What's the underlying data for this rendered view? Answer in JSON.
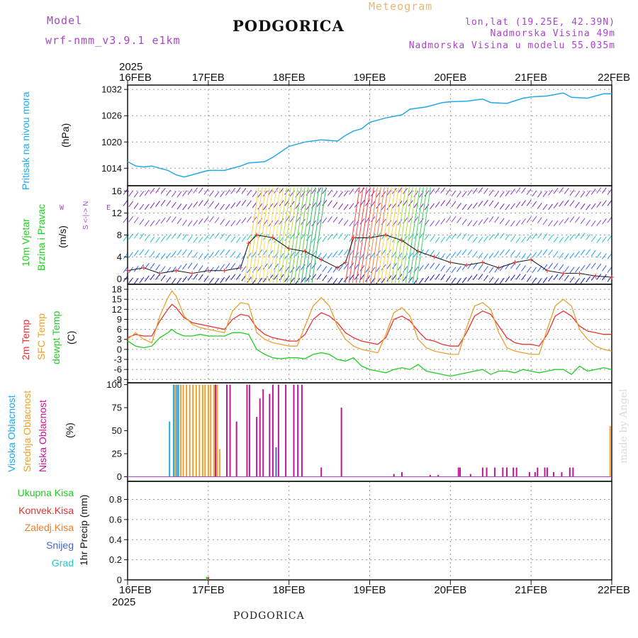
{
  "header": {
    "model_label": "Model",
    "model_name": "wrf-nmm_v3.9.1 e1km",
    "title": "PODGORICA",
    "subtitle": "Meteogram",
    "coords": "lon,lat (19.25E, 42.39N)",
    "elevation": "Nadmorska Visina 49m",
    "model_elevation": "Nadmorska Visina u modelu 55.035m"
  },
  "footer": {
    "station": "PODGORICA",
    "credit": "made by Angel"
  },
  "time_axis": {
    "year": "2025",
    "labels": [
      "16FEB",
      "17FEB",
      "18FEB",
      "19FEB",
      "20FEB",
      "21FEB",
      "22FEB"
    ]
  },
  "labels": {
    "pressure": {
      "name": "Pritisak na nivou mora",
      "unit": "(hPa)"
    },
    "wind": {
      "name1": "10m Vjetar",
      "name2": "Brzina i Pravac",
      "unit": "(m/s)",
      "compass_w": "W",
      "compass_e": "E",
      "compass_ns": "S <-|-> N"
    },
    "temp": {
      "t2m": "2m Temp",
      "sfc": "SFC Temp",
      "dew": "dewpt Temp",
      "unit": "(C)"
    },
    "cloud": {
      "high": "Visoka Oblacnost",
      "mid": "Srednja Oblacnost",
      "low": "Niska Oblacnost",
      "unit": "(%)"
    },
    "precip": {
      "total": "Ukupna Kisa",
      "conv": "Konvek.Kisa",
      "frozen": "Zaledj.Kisa",
      "snow": "Snijeg",
      "graupel": "Grad",
      "unit": "1hr Precip (mm)"
    }
  },
  "colors": {
    "pressure": "#22a8e8",
    "t2m": "#e83030",
    "sfc": "#e8a030",
    "dew": "#22cc22",
    "high": "#22a8e8",
    "mid": "#e8a030",
    "low": "#c01890",
    "snow": "#4466cc",
    "total": "#22cc22",
    "conv": "#e83030",
    "frozen": "#e88030",
    "graupel": "#22cccc",
    "model": "#aa44cc",
    "subtitle": "#e8b870",
    "credit": "#d8dcdc"
  },
  "chart_data": [
    {
      "type": "line",
      "title": "Pritisak na nivou mora",
      "ylabel": "(hPa)",
      "ylim": [
        1010,
        1033
      ],
      "yticks": [
        1014,
        1020,
        1026,
        1032
      ],
      "grid": true,
      "x": [
        0,
        0.1,
        0.2,
        0.3,
        0.4,
        0.5,
        0.6,
        0.7,
        0.8,
        0.9,
        1.0,
        1.2,
        1.4,
        1.5,
        1.7,
        1.8,
        2.0,
        2.2,
        2.4,
        2.6,
        2.7,
        2.8,
        2.9,
        3.0,
        3.2,
        3.4,
        3.5,
        3.7,
        3.9,
        4.0,
        4.2,
        4.4,
        4.5,
        4.7,
        4.9,
        5.0,
        5.2,
        5.4,
        5.5,
        5.7,
        5.9,
        6.0
      ],
      "series": [
        {
          "name": "Pritisak na nivou mora",
          "values": [
            1015.5,
            1014.5,
            1014.3,
            1014.5,
            1014.0,
            1013.5,
            1012.5,
            1012.0,
            1012.5,
            1013.0,
            1013.5,
            1013.5,
            1014.5,
            1015.2,
            1015.5,
            1016.5,
            1019.0,
            1020.0,
            1020.5,
            1020.2,
            1021.5,
            1022.5,
            1023.0,
            1024.5,
            1025.5,
            1026.2,
            1027.5,
            1028.0,
            1029.0,
            1029.2,
            1029.3,
            1029.8,
            1029.0,
            1028.8,
            1030.0,
            1030.3,
            1030.5,
            1031.2,
            1030.2,
            1030.0,
            1031.0,
            1031.0
          ]
        }
      ]
    },
    {
      "type": "line",
      "title": "10m Vjetar Brzina i Pravac",
      "ylabel": "(m/s)",
      "ylim": [
        -1,
        17
      ],
      "yticks": [
        0,
        4,
        8,
        12,
        16
      ],
      "grid": true,
      "x": [
        0,
        0.2,
        0.4,
        0.6,
        0.8,
        1.0,
        1.2,
        1.4,
        1.5,
        1.6,
        1.8,
        2.0,
        2.2,
        2.4,
        2.6,
        2.7,
        2.8,
        3.0,
        3.2,
        3.4,
        3.6,
        3.8,
        4.0,
        4.2,
        4.4,
        4.6,
        4.8,
        5.0,
        5.2,
        5.4,
        5.6,
        5.8,
        6.0
      ],
      "series": [
        {
          "name": "10m Vjetar",
          "values": [
            1.5,
            2.0,
            1.0,
            1.5,
            1.0,
            1.5,
            1.5,
            2.0,
            6.5,
            8.0,
            7.5,
            5.5,
            5.0,
            3.5,
            2.0,
            3.0,
            7.5,
            7.5,
            8.0,
            7.0,
            5.0,
            4.0,
            3.0,
            2.5,
            3.0,
            2.0,
            3.0,
            3.5,
            1.5,
            1.0,
            1.0,
            0.5,
            0.3
          ]
        }
      ]
    },
    {
      "type": "line",
      "title": "2m Temp / SFC Temp / dewpt Temp",
      "ylabel": "(C)",
      "ylim": [
        -10,
        19.5
      ],
      "yticks": [
        -9,
        -6,
        -3,
        0,
        3,
        6,
        9,
        12,
        15,
        18
      ],
      "grid": true,
      "x": [
        0,
        0.1,
        0.2,
        0.3,
        0.4,
        0.5,
        0.55,
        0.6,
        0.7,
        0.8,
        0.9,
        1.0,
        1.1,
        1.2,
        1.3,
        1.4,
        1.5,
        1.6,
        1.7,
        1.8,
        1.9,
        2.0,
        2.1,
        2.2,
        2.3,
        2.4,
        2.5,
        2.6,
        2.7,
        2.8,
        2.9,
        3.0,
        3.1,
        3.2,
        3.3,
        3.4,
        3.5,
        3.6,
        3.7,
        3.8,
        3.9,
        4.0,
        4.1,
        4.2,
        4.3,
        4.4,
        4.5,
        4.6,
        4.7,
        4.8,
        4.9,
        5.0,
        5.1,
        5.2,
        5.3,
        5.4,
        5.5,
        5.6,
        5.7,
        5.8,
        5.9,
        6.0
      ],
      "series": [
        {
          "name": "2m Temp",
          "values": [
            3.5,
            4.5,
            4.0,
            4.0,
            8.5,
            12.0,
            13.5,
            12.5,
            9.5,
            8.0,
            7.5,
            7.0,
            6.5,
            6.0,
            9.0,
            10.5,
            10.0,
            6.5,
            4.5,
            3.5,
            3.0,
            2.5,
            2.5,
            4.5,
            9.0,
            11.0,
            10.0,
            8.0,
            5.0,
            3.5,
            2.5,
            2.0,
            1.5,
            3.5,
            9.0,
            10.0,
            8.5,
            5.5,
            3.0,
            2.5,
            1.5,
            1.0,
            1.0,
            5.0,
            10.0,
            11.5,
            10.5,
            7.0,
            3.5,
            2.0,
            1.5,
            1.5,
            1.0,
            4.5,
            10.0,
            11.5,
            10.0,
            7.0,
            5.5,
            5.0,
            4.5,
            4.5
          ]
        },
        {
          "name": "SFC Temp",
          "values": [
            3.0,
            5.0,
            3.0,
            2.0,
            10.0,
            15.5,
            17.5,
            16.0,
            10.0,
            7.5,
            6.5,
            6.0,
            5.5,
            5.0,
            11.5,
            14.0,
            13.5,
            5.0,
            3.0,
            2.0,
            1.5,
            1.0,
            1.0,
            7.0,
            13.0,
            15.5,
            13.0,
            7.0,
            3.0,
            1.0,
            0.0,
            -0.5,
            -1.0,
            4.5,
            11.0,
            12.5,
            10.0,
            3.0,
            0.5,
            -0.5,
            -1.0,
            -1.5,
            -1.5,
            6.5,
            13.0,
            14.0,
            12.0,
            5.0,
            0.5,
            -0.5,
            -1.0,
            -1.5,
            -1.5,
            6.0,
            13.0,
            15.0,
            13.0,
            6.0,
            3.0,
            1.0,
            0.0,
            -0.5
          ]
        },
        {
          "name": "dewpt Temp",
          "values": [
            2.5,
            1.0,
            0.5,
            1.0,
            3.5,
            5.0,
            6.0,
            5.0,
            4.0,
            4.0,
            4.5,
            4.0,
            4.0,
            4.0,
            5.0,
            5.0,
            4.5,
            0.0,
            -1.5,
            -2.5,
            -2.8,
            -2.5,
            -2.5,
            -2.8,
            -1.5,
            -1.0,
            -1.5,
            -3.0,
            -3.5,
            -2.5,
            -5.0,
            -6.0,
            -6.5,
            -7.0,
            -6.0,
            -5.5,
            -6.0,
            -4.5,
            -6.5,
            -7.0,
            -7.5,
            -8.0,
            -7.5,
            -7.0,
            -6.5,
            -6.0,
            -7.5,
            -6.5,
            -6.5,
            -7.0,
            -6.0,
            -6.5,
            -7.0,
            -6.5,
            -6.0,
            -6.0,
            -7.5,
            -5.0,
            -6.5,
            -6.0,
            -5.5,
            -6.0
          ]
        }
      ]
    },
    {
      "type": "bar",
      "title": "Oblacnost",
      "ylabel": "(%)",
      "ylim": [
        -5,
        102
      ],
      "yticks": [
        0,
        25,
        50,
        75,
        100
      ],
      "grid": false,
      "series": [
        {
          "name": "Visoka Oblacnost",
          "x": [
            0.52,
            0.57,
            0.61,
            0.63
          ],
          "values": [
            60,
            100,
            100,
            100
          ]
        },
        {
          "name": "Srednja Oblacnost",
          "x": [
            0.59,
            0.66,
            0.69,
            0.73,
            0.77,
            0.81,
            0.85,
            0.89,
            0.93,
            0.96,
            1.0,
            1.03,
            1.07,
            1.11,
            1.14,
            5.98
          ],
          "values": [
            100,
            100,
            100,
            100,
            100,
            100,
            100,
            100,
            100,
            100,
            100,
            100,
            100,
            100,
            30,
            55
          ]
        },
        {
          "name": "Niska Oblacnost",
          "x": [
            1.09,
            1.23,
            1.27,
            1.35,
            1.48,
            1.51,
            1.6,
            1.64,
            1.68,
            1.76,
            1.8,
            1.87,
            1.96,
            2.06,
            2.11,
            2.16,
            2.4,
            2.65,
            3.3,
            3.4,
            3.75,
            3.85,
            4.1,
            4.12,
            4.25,
            4.4,
            4.45,
            4.55,
            4.65,
            4.7,
            4.78,
            4.82,
            4.98,
            5.05,
            5.08,
            5.17,
            5.2,
            5.28,
            5.38,
            5.48,
            5.52
          ],
          "values": [
            100,
            100,
            100,
            60,
            100,
            100,
            65,
            85,
            95,
            90,
            100,
            100,
            100,
            100,
            100,
            100,
            10,
            75,
            3,
            5,
            2,
            2,
            10,
            10,
            3,
            10,
            10,
            10,
            10,
            10,
            10,
            10,
            5,
            5,
            10,
            10,
            10,
            5,
            5,
            10,
            10
          ]
        },
        {
          "name": "Snijeg",
          "x": [
            1.84
          ],
          "values": [
            32
          ]
        }
      ]
    },
    {
      "type": "bar",
      "title": "1hr Precip",
      "ylabel": "1hr Precip (mm)",
      "ylim": [
        0,
        0.98
      ],
      "yticks": [
        0,
        0.2,
        0.4,
        0.6,
        0.8
      ],
      "grid": true,
      "series": [
        {
          "name": "Ukupna Kisa",
          "x": [
            0.98
          ],
          "values": [
            0.03
          ]
        },
        {
          "name": "Konvek.Kisa",
          "x": [
            1.0
          ],
          "values": [
            0.03
          ]
        },
        {
          "name": "Zaledj.Kisa",
          "x": [],
          "values": []
        },
        {
          "name": "Snijeg",
          "x": [],
          "values": []
        },
        {
          "name": "Grad",
          "x": [],
          "values": []
        }
      ]
    }
  ]
}
